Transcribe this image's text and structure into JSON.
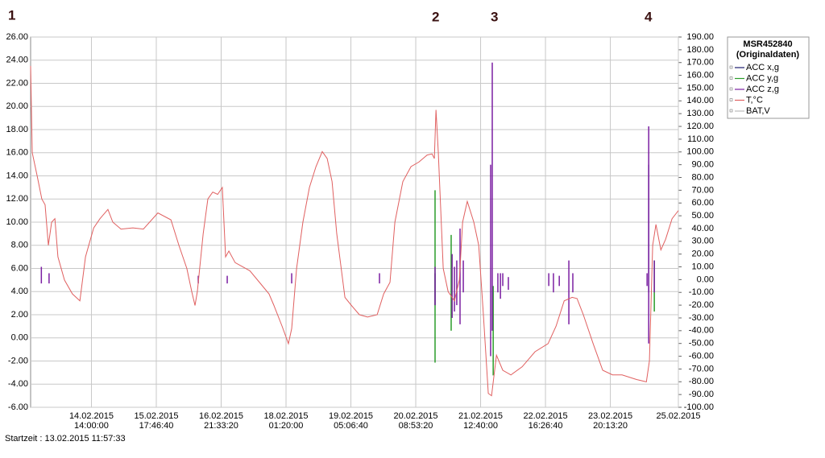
{
  "chart_data": {
    "type": "line",
    "annotations": [
      "1",
      "2",
      "3",
      "4"
    ],
    "start_label": "Startzeit : 13.02.2015 11:57:33",
    "legend_title": [
      "MSR452840",
      "(Originaldaten)"
    ],
    "grid": true,
    "xlim": [
      0,
      277.4
    ],
    "xticks": [
      {
        "value": 26.04,
        "label": "14.02.2015\n14:00:00"
      },
      {
        "value": 53.82,
        "label": "15.02.2015\n17:46:40"
      },
      {
        "value": 81.6,
        "label": "16.02.2015\n21:33:20"
      },
      {
        "value": 109.38,
        "label": "18.02.2015\n01:20:00"
      },
      {
        "value": 137.16,
        "label": "19.02.2015\n05:06:40"
      },
      {
        "value": 164.93,
        "label": "20.02.2015\n08:53:20"
      },
      {
        "value": 192.71,
        "label": "21.02.2015\n12:40:00"
      },
      {
        "value": 220.49,
        "label": "22.02.2015\n16:26:40"
      },
      {
        "value": 248.27,
        "label": "23.02.2015\n20:13:20"
      },
      {
        "value": 277.4,
        "label": "25.02.2015"
      }
    ],
    "ylim": [
      -6,
      26
    ],
    "yticks": [
      {
        "value": 26,
        "label": "26.00"
      },
      {
        "value": 24,
        "label": "24.00"
      },
      {
        "value": 22,
        "label": "22.00"
      },
      {
        "value": 20,
        "label": "20.00"
      },
      {
        "value": 18,
        "label": "18.00"
      },
      {
        "value": 16,
        "label": "16.00"
      },
      {
        "value": 14,
        "label": "14.00"
      },
      {
        "value": 12,
        "label": "12.00"
      },
      {
        "value": 10,
        "label": "10.00"
      },
      {
        "value": 8,
        "label": "8.00"
      },
      {
        "value": 6,
        "label": "6.00"
      },
      {
        "value": 4,
        "label": "4.00"
      },
      {
        "value": 2,
        "label": "2.00"
      },
      {
        "value": 0,
        "label": "0.00"
      },
      {
        "value": -2,
        "label": "-2.00"
      },
      {
        "value": -4,
        "label": "-4.00"
      },
      {
        "value": -6,
        "label": "-6.00"
      }
    ],
    "y2lim": [
      -100,
      190
    ],
    "y2ticks": [
      {
        "value": 190,
        "label": "190.00"
      },
      {
        "value": 180,
        "label": "180.00"
      },
      {
        "value": 170,
        "label": "170.00"
      },
      {
        "value": 160,
        "label": "160.00"
      },
      {
        "value": 150,
        "label": "150.00"
      },
      {
        "value": 140,
        "label": "140.00"
      },
      {
        "value": 130,
        "label": "130.00"
      },
      {
        "value": 120,
        "label": "120.00"
      },
      {
        "value": 110,
        "label": "110.00"
      },
      {
        "value": 100,
        "label": "100.00"
      },
      {
        "value": 90,
        "label": "90.00"
      },
      {
        "value": 80,
        "label": "80.00"
      },
      {
        "value": 70,
        "label": "70.00"
      },
      {
        "value": 60,
        "label": "60.00"
      },
      {
        "value": 50,
        "label": "50.00"
      },
      {
        "value": 40,
        "label": "40.00"
      },
      {
        "value": 30,
        "label": "30.00"
      },
      {
        "value": 20,
        "label": "20.00"
      },
      {
        "value": 10,
        "label": "10.00"
      },
      {
        "value": 0,
        "label": "0.00"
      },
      {
        "value": -10,
        "label": "-10.00"
      },
      {
        "value": -20,
        "label": "-20.00"
      },
      {
        "value": -30,
        "label": "-30.00"
      },
      {
        "value": -40,
        "label": "-40.00"
      },
      {
        "value": -50,
        "label": "-50.00"
      },
      {
        "value": -60,
        "label": "-60.00"
      },
      {
        "value": -70,
        "label": "-70.00"
      },
      {
        "value": -80,
        "label": "-80.00"
      },
      {
        "value": -90,
        "label": "-90.00"
      },
      {
        "value": -100,
        "label": "-100.00"
      }
    ],
    "series": [
      {
        "name": "ACC x,g",
        "color": "#1c1c6e",
        "axis": "y2",
        "style": "spikes",
        "x": [
          173.2,
          173.2,
          264.7,
          264.7
        ],
        "values": [
          5,
          -20,
          90,
          -10
        ]
      },
      {
        "name": "ACC y,g",
        "color": "#2a9d2a",
        "axis": "y2",
        "style": "spikes",
        "x": [
          173.2,
          173.2,
          180.1,
          180.1,
          198.1,
          198.1,
          267.1,
          267.1
        ],
        "values": [
          70,
          -65,
          35,
          -40,
          -5,
          -75,
          15,
          -25
        ]
      },
      {
        "name": "ACC z,g",
        "color": "#7b1fa2",
        "axis": "y2",
        "style": "spikes",
        "x": [
          4.6,
          4.6,
          7.9,
          7.9,
          71.8,
          71.8,
          84.2,
          84.2,
          111.8,
          111.8,
          149.4,
          149.4,
          173.2,
          173.2,
          180.5,
          180.5,
          181.5,
          181.5,
          182.5,
          182.5,
          183.9,
          183.9,
          185.3,
          185.3,
          197.0,
          197.0,
          197.7,
          197.7,
          200.1,
          200.1,
          201.2,
          201.2,
          202.2,
          202.2,
          204.6,
          204.6,
          221.9,
          221.9,
          223.9,
          223.9,
          226.4,
          226.4,
          230.5,
          230.5,
          232.2,
          232.2,
          264.0,
          264.0,
          264.7,
          264.7,
          267.1,
          267.1
        ],
        "values": [
          10,
          -3,
          5,
          -3,
          3,
          -3,
          3,
          -3,
          5,
          -3,
          5,
          -3,
          10,
          -20,
          20,
          -30,
          10,
          -25,
          15,
          -20,
          40,
          -35,
          15,
          -10,
          90,
          -60,
          170,
          -40,
          5,
          -10,
          5,
          -15,
          5,
          -5,
          2,
          -8,
          5,
          -5,
          5,
          -10,
          3,
          -5,
          15,
          -35,
          5,
          -10,
          5,
          -5,
          120,
          -50,
          15,
          -10
        ]
      },
      {
        "name": "T,°C",
        "color": "#e06060",
        "axis": "y",
        "x": [
          0,
          0.7,
          2.8,
          4.8,
          6.2,
          7.6,
          9.0,
          10.4,
          11.7,
          14.5,
          17.9,
          21.1,
          23.5,
          27.0,
          29.7,
          33.1,
          35.2,
          38.7,
          43.8,
          48.3,
          54.5,
          60.1,
          63.5,
          66.9,
          69.0,
          70.4,
          71.4,
          73.9,
          75.9,
          78.0,
          80.1,
          82.1,
          83.5,
          84.9,
          87.6,
          93.9,
          98.0,
          102.1,
          104.2,
          107.7,
          110.4,
          111.8,
          113.9,
          116.6,
          119.4,
          122.2,
          124.9,
          127.0,
          129.1,
          131.1,
          134.6,
          137.4,
          140.8,
          144.3,
          148.4,
          151.2,
          153.9,
          156.0,
          159.4,
          162.9,
          166.3,
          169.8,
          171.9,
          172.9,
          173.6,
          174.6,
          176.7,
          178.8,
          181.5,
          183.6,
          185.0,
          187.0,
          189.8,
          191.9,
          193.9,
          196.0,
          197.4,
          199.5,
          202.2,
          205.7,
          210.5,
          216.0,
          221.6,
          225.0,
          228.5,
          231.9,
          234.0,
          236.7,
          240.9,
          245.0,
          249.2,
          253.3,
          259.5,
          263.7,
          265.0,
          266.4,
          267.8,
          269.9,
          271.9,
          274.7,
          277.4
        ],
        "values": [
          23.5,
          16,
          14,
          12,
          11.5,
          8,
          10,
          10.3,
          7,
          5,
          3.8,
          3.2,
          7,
          9.5,
          10.3,
          11.1,
          10,
          9.4,
          9.5,
          9.4,
          10.8,
          10.2,
          8,
          6,
          4,
          2.8,
          4,
          9,
          12,
          12.6,
          12.4,
          13,
          7,
          7.5,
          6.5,
          5.8,
          4.8,
          3.8,
          2.8,
          1,
          -0.5,
          0.8,
          6,
          10,
          13,
          14.8,
          16.1,
          15.5,
          13.5,
          9,
          3.5,
          2.8,
          2,
          1.8,
          2,
          3.8,
          4.8,
          10,
          13.5,
          14.8,
          15.2,
          15.8,
          15.9,
          15.5,
          19.7,
          16,
          6,
          4,
          3.2,
          5,
          10,
          11.8,
          10,
          8,
          2,
          -4.8,
          -5,
          -1.5,
          -2.8,
          -3.2,
          -2.5,
          -1.2,
          -0.5,
          1,
          3.2,
          3.5,
          3.4,
          2,
          -0.5,
          -2.8,
          -3.2,
          -3.2,
          -3.6,
          -3.8,
          -2,
          8,
          9.8,
          7.6,
          8.5,
          10.3,
          11
        ]
      },
      {
        "name": "BAT,V",
        "color": "#bbbbbb",
        "axis": "y",
        "x": [],
        "values": []
      }
    ]
  }
}
